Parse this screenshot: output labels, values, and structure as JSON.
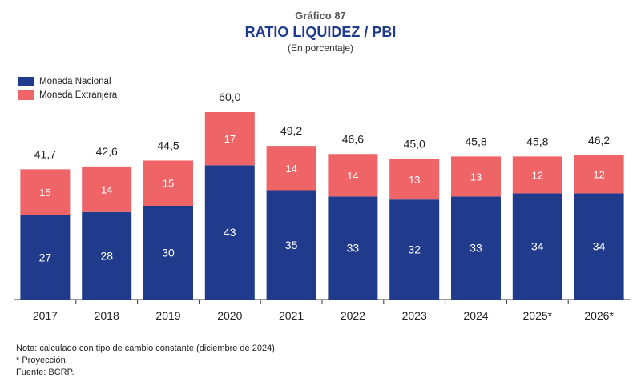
{
  "header": {
    "kicker": "Gráfico 87",
    "title": "RATIO LIQUIDEZ / PBI",
    "subtitle": "(En porcentaje)"
  },
  "colors": {
    "nacional": "#213b8c",
    "extranjera": "#ef6466",
    "axis": "#333333"
  },
  "chart_data": {
    "type": "bar",
    "stacked": true,
    "categories": [
      "2017",
      "2018",
      "2019",
      "2020",
      "2021",
      "2022",
      "2023",
      "2024",
      "2025*",
      "2026*"
    ],
    "series": [
      {
        "name": "Moneda Nacional",
        "values": [
          27,
          28,
          30,
          43,
          35,
          33,
          32,
          33,
          34,
          34
        ]
      },
      {
        "name": "Moneda Extranjera",
        "values": [
          15,
          14,
          15,
          17,
          14,
          14,
          13,
          13,
          12,
          12
        ]
      }
    ],
    "totals": [
      "41,7",
      "42,6",
      "44,5",
      "60,0",
      "49,2",
      "46,6",
      "45,0",
      "45,8",
      "45,8",
      "46,2"
    ],
    "total_values": [
      41.7,
      42.6,
      44.5,
      60.0,
      49.2,
      46.6,
      45.0,
      45.8,
      45.8,
      46.2
    ],
    "ylim": [
      0,
      60
    ],
    "grid": false,
    "legend_position": "top-left"
  },
  "notes": [
    "Nota: calculado con tipo de cambio constante (diciembre de 2024).",
    "* Proyección.",
    "Fuente: BCRP."
  ]
}
